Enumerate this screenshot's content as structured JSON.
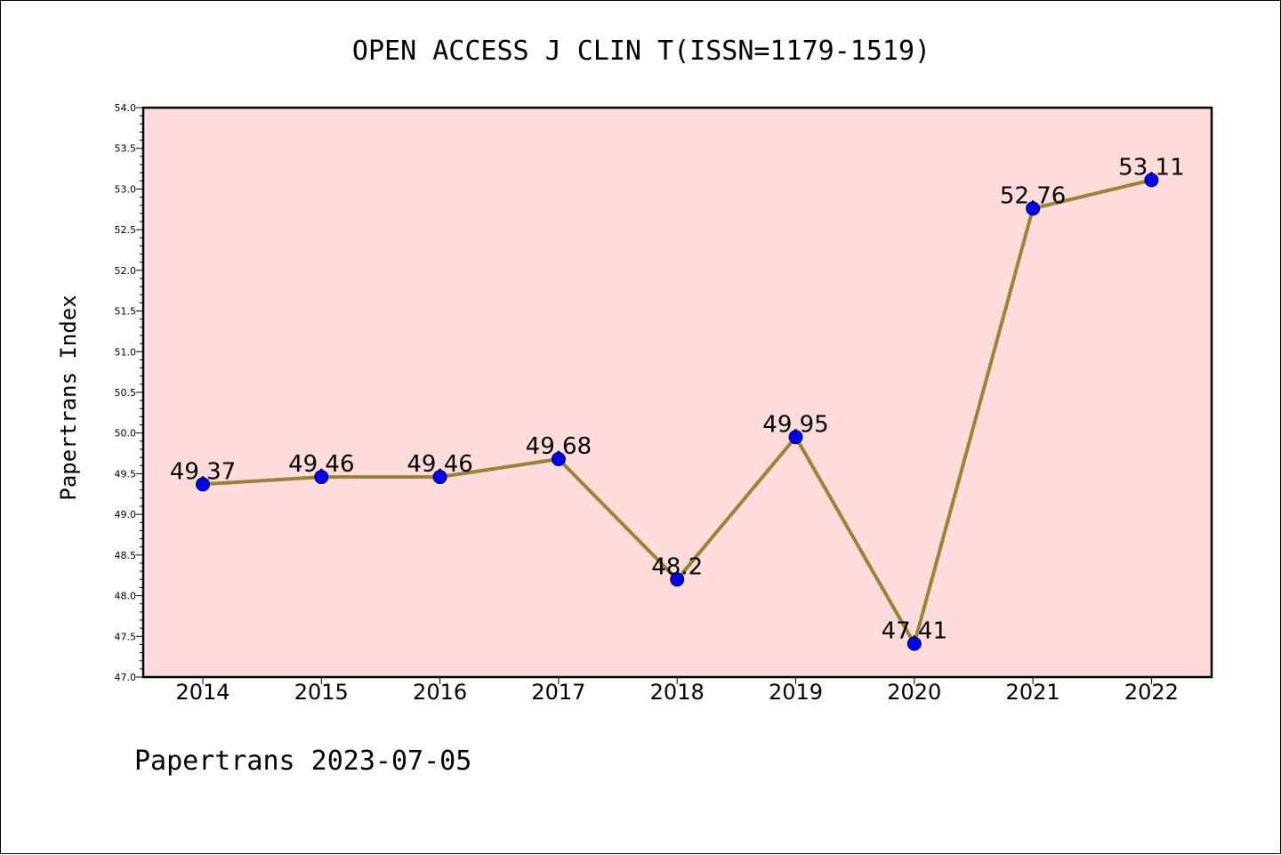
{
  "chart_data": {
    "type": "line",
    "title": "OPEN ACCESS J CLIN T(ISSN=1179-1519)",
    "xlabel": "",
    "ylabel": "Papertrans Index",
    "categories": [
      "2014",
      "2015",
      "2016",
      "2017",
      "2018",
      "2019",
      "2020",
      "2021",
      "2022"
    ],
    "values": [
      49.37,
      49.46,
      49.46,
      49.68,
      48.2,
      49.95,
      47.41,
      52.76,
      53.11
    ],
    "data_labels": [
      "49.37",
      "49.46",
      "49.46",
      "49.68",
      "48.2",
      "49.95",
      "47.41",
      "52.76",
      "53.11"
    ],
    "ylim": [
      47.0,
      54.0
    ],
    "yticks": [
      "47.0",
      "47.5",
      "48.0",
      "48.5",
      "49.0",
      "49.5",
      "50.0",
      "50.5",
      "51.0",
      "51.5",
      "52.0",
      "52.5",
      "53.0",
      "53.5",
      "54.0"
    ],
    "grid": false,
    "legend": "none",
    "colors": {
      "background": "#ffdcdc",
      "line": "#9a8237",
      "marker": "#0000ff",
      "marker_edge": "#000033"
    }
  },
  "footer": "Papertrans 2023-07-05"
}
